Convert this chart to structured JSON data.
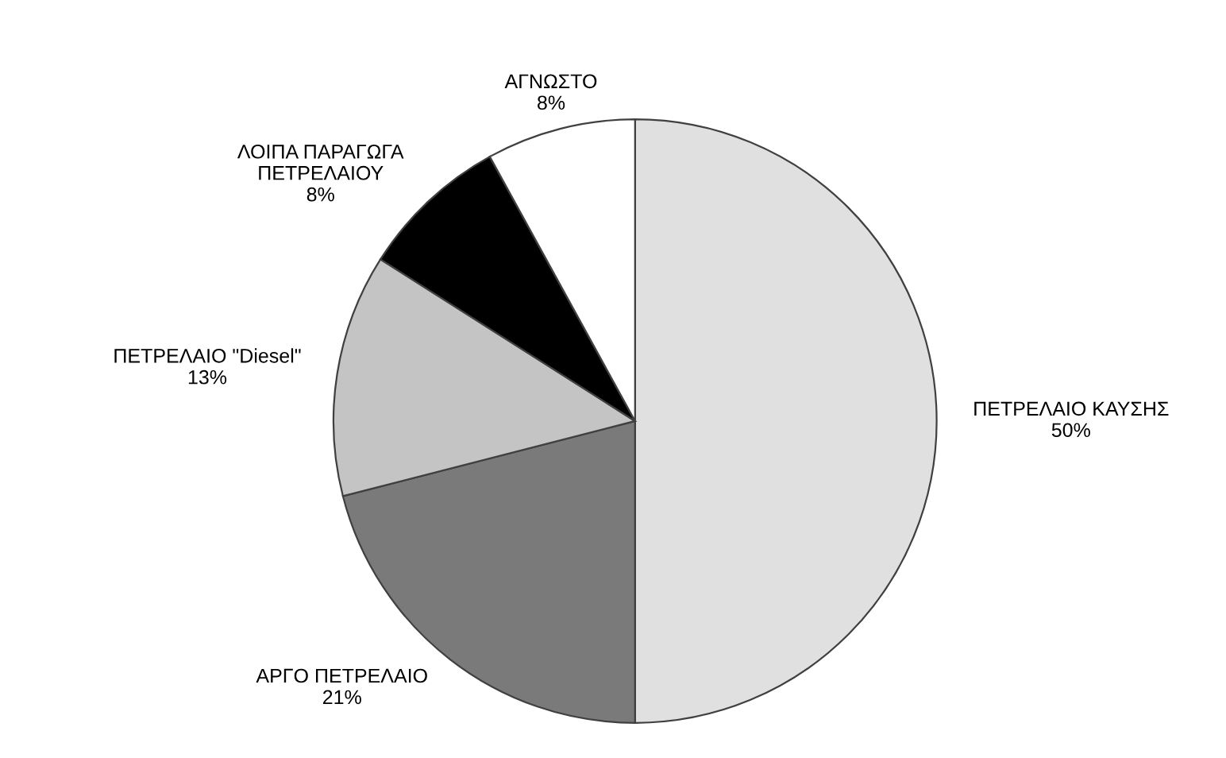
{
  "chart_data": {
    "type": "pie",
    "categories": [
      "ΠΕΤΡΕΛΑΙΟ ΚΑΥΣΗΣ",
      "ΑΡΓΟ ΠΕΤΡΕΛΑΙΟ",
      "ΠΕΤΡΕΛΑΙΟ \"Diesel\"",
      "ΛΟΙΠΑ ΠΑΡΑΓΩΓΑ\nΠΕΤΡΕΛΑΙΟΥ",
      "ΑΓΝΩΣΤΟ"
    ],
    "values": [
      50,
      21,
      13,
      8,
      8
    ],
    "value_labels": [
      "50%",
      "21%",
      "13%",
      "8%",
      "8%"
    ],
    "colors": [
      "#e0e0e0",
      "#7a7a7a",
      "#c4c4c4",
      "#000000",
      "#ffffff"
    ]
  }
}
